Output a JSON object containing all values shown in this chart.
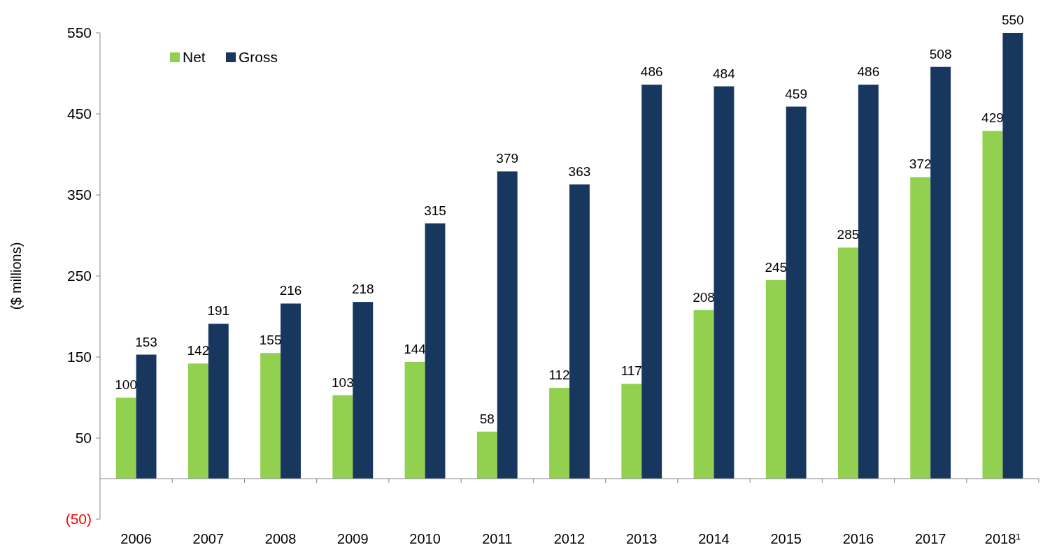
{
  "chart_data": {
    "type": "bar",
    "ylabel": "($ millions)",
    "categories": [
      "2006",
      "2007",
      "2008",
      "2009",
      "2010",
      "2011",
      "2012",
      "2013",
      "2014",
      "2015",
      "2016",
      "2017",
      "2018¹"
    ],
    "series": [
      {
        "name": "Net",
        "color": "#92d050",
        "values": [
          100,
          142,
          155,
          103,
          144,
          58,
          112,
          117,
          208,
          245,
          285,
          372,
          429
        ]
      },
      {
        "name": "Gross",
        "color": "#17375e",
        "values": [
          153,
          191,
          216,
          218,
          315,
          379,
          363,
          486,
          484,
          459,
          486,
          508,
          550
        ]
      }
    ],
    "ylim": [
      -50,
      550
    ],
    "yticks": [
      {
        "value": -50,
        "label": "(50)"
      },
      50,
      150,
      250,
      350,
      450,
      550
    ],
    "data_labels": true,
    "legend": "top left",
    "grid": false
  }
}
